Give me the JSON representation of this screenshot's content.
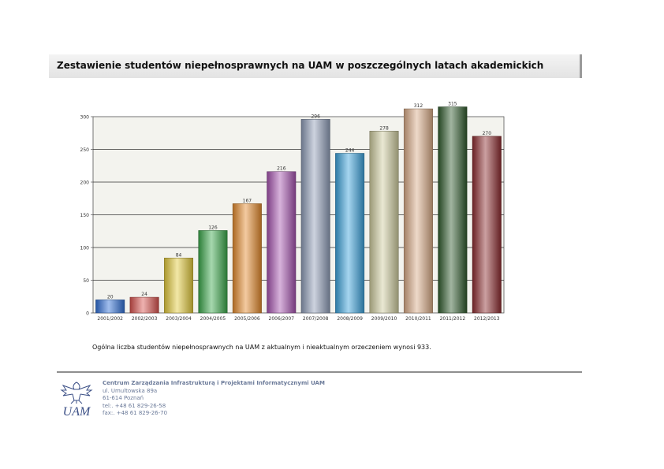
{
  "page": {
    "title": "Zestawienie studentów niepełnosprawnych na UAM w poszczególnych latach akademickich",
    "summary": "Ogólna liczba studentów niepełnosprawnych na UAM z aktualnym i nieaktualnym orzeczeniem wynosi 933."
  },
  "footer": {
    "org": "Centrum Zarządzania Infrastrukturą i Projektami Informatycznymi UAM",
    "street": "ul. Umultowska 89a",
    "city": "61-614 Poznań",
    "tel": "tel:. +48 61 829-26-58",
    "fax": "fax:. +48 61 829-26-70",
    "logo_text": "UAM"
  },
  "chart_data": {
    "type": "bar",
    "categories": [
      "2001/2002",
      "2002/2003",
      "2003/2004",
      "2004/2005",
      "2005/2006",
      "2006/2007",
      "2007/2008",
      "2008/2009",
      "2009/2010",
      "2010/2011",
      "2011/2012",
      "2012/2013"
    ],
    "values": [
      20,
      24,
      84,
      126,
      167,
      216,
      296,
      244,
      278,
      312,
      315,
      270
    ],
    "data_labels": [
      "20",
      "24",
      "84",
      "126",
      "167",
      "216",
      "296",
      "244",
      "278",
      "312",
      "315",
      "270"
    ],
    "yticks": [
      "0",
      "50",
      "100",
      "150",
      "200",
      "250",
      "300"
    ],
    "ylim": [
      0,
      300
    ],
    "grid": true,
    "colors": [
      "#2f6fd6",
      "#d9534f",
      "#e2c93a",
      "#3aa84a",
      "#e48a2c",
      "#a653b0",
      "#8f9db8",
      "#3aa2dc",
      "#cfcc9e",
      "#d9ab86",
      "#2f5a2c",
      "#8c2b2f"
    ],
    "background": "#f3f3ee"
  }
}
